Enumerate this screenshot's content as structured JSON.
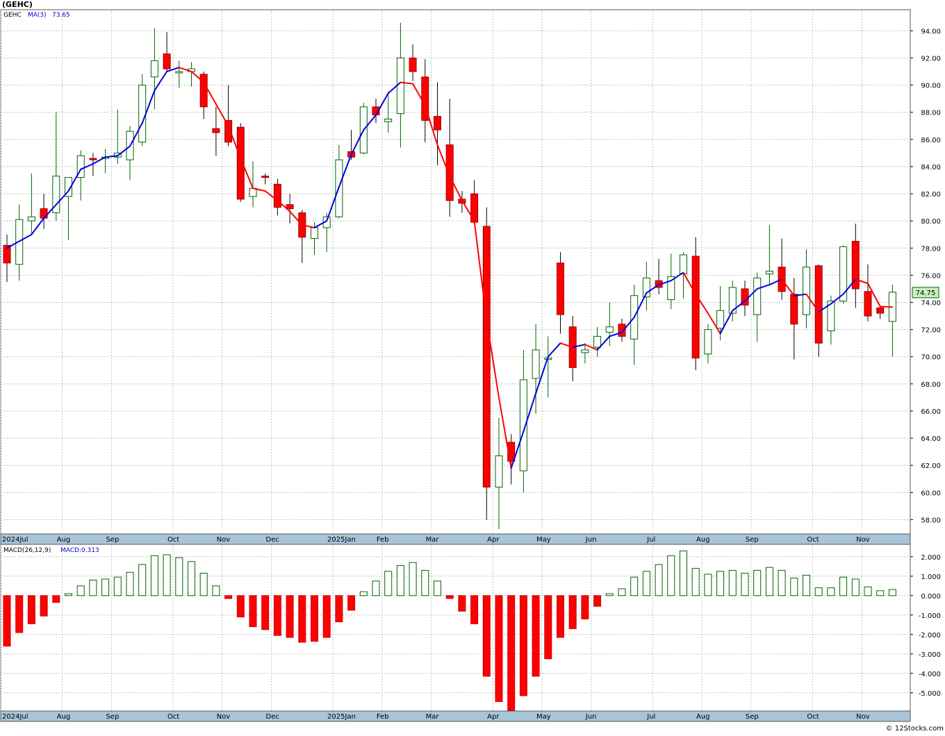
{
  "ticker_header": "(GEHC)",
  "price_panel": {
    "legend_symbol": "GEHC",
    "legend_ma_label": "MA(3)",
    "legend_ma_value": "73.65",
    "last_price_label": "74.75"
  },
  "macd_panel": {
    "legend_label": "MACD(26,12,9)",
    "legend_value": "MACD:0.313"
  },
  "watermark": "© 12Stocks.com",
  "colors": {
    "up_body": "#ffffff",
    "up_outline": "#006400",
    "down_body": "#ff0000",
    "down_outline": "#990000",
    "ma_rising": "#0000dd",
    "ma_falling": "#ff0000",
    "macd_pos_outline": "#006400",
    "macd_neg_fill": "#ff0000",
    "grid": "#c0c0c0",
    "axis_strip": "#a8c4d8",
    "price_tag_bg": "#c8f0c0"
  },
  "chart_data": [
    {
      "type": "candlestick",
      "title": "(GEHC)",
      "interval": "weekly",
      "ylim": [
        57,
        95.5
      ],
      "yticks": [
        58,
        60,
        62,
        64,
        66,
        68,
        70,
        72,
        74,
        76,
        78,
        80,
        82,
        84,
        86,
        88,
        90,
        92,
        94
      ],
      "x_tick_labels": [
        "2024Jul",
        "Aug",
        "Sep",
        "Oct",
        "Nov",
        "Dec",
        "2025Jan",
        "Feb",
        "Mar",
        "Apr",
        "May",
        "Jun",
        "Jul",
        "Aug",
        "Sep",
        "Oct",
        "Nov"
      ],
      "x_tick_index": [
        0,
        5,
        9,
        14,
        18,
        22,
        27,
        31,
        35,
        40,
        44,
        48,
        53,
        57,
        61,
        66,
        70
      ],
      "grid": true,
      "candles": [
        {
          "o": 78.2,
          "h": 79.0,
          "l": 75.5,
          "c": 76.9
        },
        {
          "o": 76.8,
          "h": 81.2,
          "l": 75.6,
          "c": 80.1
        },
        {
          "o": 80.0,
          "h": 83.5,
          "l": 79.0,
          "c": 80.3
        },
        {
          "o": 80.9,
          "h": 82.0,
          "l": 79.4,
          "c": 80.2
        },
        {
          "o": 80.6,
          "h": 88.0,
          "l": 80.0,
          "c": 83.3
        },
        {
          "o": 81.8,
          "h": 83.2,
          "l": 78.6,
          "c": 83.2
        },
        {
          "o": 83.2,
          "h": 85.2,
          "l": 81.5,
          "c": 84.8
        },
        {
          "o": 84.6,
          "h": 85.0,
          "l": 83.3,
          "c": 84.5
        },
        {
          "o": 84.6,
          "h": 85.3,
          "l": 83.5,
          "c": 84.7
        },
        {
          "o": 84.7,
          "h": 88.2,
          "l": 84.2,
          "c": 85.0
        },
        {
          "o": 84.5,
          "h": 87.0,
          "l": 83.0,
          "c": 86.6
        },
        {
          "o": 85.8,
          "h": 90.8,
          "l": 85.5,
          "c": 90.0
        },
        {
          "o": 90.6,
          "h": 94.2,
          "l": 88.2,
          "c": 91.8
        },
        {
          "o": 92.3,
          "h": 93.9,
          "l": 91.0,
          "c": 91.2
        },
        {
          "o": 90.9,
          "h": 91.8,
          "l": 89.8,
          "c": 91.0
        },
        {
          "o": 91.0,
          "h": 91.7,
          "l": 89.9,
          "c": 91.2
        },
        {
          "o": 90.8,
          "h": 91.0,
          "l": 87.5,
          "c": 88.4
        },
        {
          "o": 86.8,
          "h": 88.4,
          "l": 84.8,
          "c": 86.5
        },
        {
          "o": 87.4,
          "h": 90.0,
          "l": 85.5,
          "c": 85.8
        },
        {
          "o": 86.9,
          "h": 87.2,
          "l": 81.4,
          "c": 81.6
        },
        {
          "o": 81.8,
          "h": 84.4,
          "l": 81.0,
          "c": 82.4
        },
        {
          "o": 83.3,
          "h": 83.5,
          "l": 82.7,
          "c": 83.2
        },
        {
          "o": 82.7,
          "h": 83.1,
          "l": 80.4,
          "c": 81.0
        },
        {
          "o": 81.2,
          "h": 82.0,
          "l": 79.8,
          "c": 80.9
        },
        {
          "o": 80.6,
          "h": 80.8,
          "l": 76.9,
          "c": 78.8
        },
        {
          "o": 78.7,
          "h": 79.9,
          "l": 77.5,
          "c": 79.5
        },
        {
          "o": 79.5,
          "h": 80.6,
          "l": 77.7,
          "c": 80.3
        },
        {
          "o": 80.3,
          "h": 85.6,
          "l": 80.2,
          "c": 84.5
        },
        {
          "o": 85.1,
          "h": 86.7,
          "l": 84.5,
          "c": 84.7
        },
        {
          "o": 85.0,
          "h": 88.7,
          "l": 84.9,
          "c": 88.4
        },
        {
          "o": 88.4,
          "h": 89.0,
          "l": 87.2,
          "c": 87.8
        },
        {
          "o": 87.3,
          "h": 89.5,
          "l": 86.5,
          "c": 87.5
        },
        {
          "o": 87.9,
          "h": 94.6,
          "l": 85.4,
          "c": 92.0
        },
        {
          "o": 92.0,
          "h": 93.0,
          "l": 90.3,
          "c": 91.0
        },
        {
          "o": 90.6,
          "h": 91.9,
          "l": 85.8,
          "c": 87.4
        },
        {
          "o": 87.7,
          "h": 90.2,
          "l": 84.1,
          "c": 86.7
        },
        {
          "o": 85.6,
          "h": 89.0,
          "l": 80.3,
          "c": 81.5
        },
        {
          "o": 81.6,
          "h": 82.2,
          "l": 80.6,
          "c": 81.3
        },
        {
          "o": 82.0,
          "h": 83.0,
          "l": 79.8,
          "c": 79.9
        },
        {
          "o": 79.6,
          "h": 81.0,
          "l": 58.0,
          "c": 60.4
        },
        {
          "o": 60.4,
          "h": 65.5,
          "l": 57.3,
          "c": 62.7
        },
        {
          "o": 63.7,
          "h": 64.3,
          "l": 60.6,
          "c": 62.3
        },
        {
          "o": 61.6,
          "h": 70.5,
          "l": 60.0,
          "c": 68.3
        },
        {
          "o": 68.4,
          "h": 72.4,
          "l": 65.8,
          "c": 70.5
        },
        {
          "o": 69.8,
          "h": 71.5,
          "l": 67.0,
          "c": 69.9
        },
        {
          "o": 76.9,
          "h": 77.7,
          "l": 71.7,
          "c": 73.1
        },
        {
          "o": 72.2,
          "h": 73.0,
          "l": 68.2,
          "c": 69.2
        },
        {
          "o": 70.3,
          "h": 71.0,
          "l": 69.5,
          "c": 70.5
        },
        {
          "o": 70.7,
          "h": 72.2,
          "l": 70.0,
          "c": 71.5
        },
        {
          "o": 71.8,
          "h": 74.0,
          "l": 70.8,
          "c": 72.2
        },
        {
          "o": 72.4,
          "h": 72.8,
          "l": 71.1,
          "c": 71.5
        },
        {
          "o": 71.3,
          "h": 75.3,
          "l": 69.4,
          "c": 74.5
        },
        {
          "o": 74.4,
          "h": 77.0,
          "l": 73.4,
          "c": 75.8
        },
        {
          "o": 75.6,
          "h": 77.2,
          "l": 74.6,
          "c": 75.1
        },
        {
          "o": 74.2,
          "h": 77.6,
          "l": 73.5,
          "c": 75.9
        },
        {
          "o": 76.1,
          "h": 77.7,
          "l": 74.3,
          "c": 77.5
        },
        {
          "o": 77.4,
          "h": 78.8,
          "l": 69.0,
          "c": 69.9
        },
        {
          "o": 70.2,
          "h": 72.4,
          "l": 69.5,
          "c": 72.0
        },
        {
          "o": 72.1,
          "h": 75.2,
          "l": 71.2,
          "c": 73.4
        },
        {
          "o": 73.2,
          "h": 75.6,
          "l": 72.6,
          "c": 75.1
        },
        {
          "o": 75.0,
          "h": 75.6,
          "l": 73.0,
          "c": 73.8
        },
        {
          "o": 73.1,
          "h": 76.2,
          "l": 71.1,
          "c": 75.8
        },
        {
          "o": 76.1,
          "h": 79.7,
          "l": 75.3,
          "c": 76.3
        },
        {
          "o": 76.6,
          "h": 78.7,
          "l": 74.2,
          "c": 74.8
        },
        {
          "o": 74.6,
          "h": 75.8,
          "l": 69.8,
          "c": 72.4
        },
        {
          "o": 73.1,
          "h": 77.9,
          "l": 72.1,
          "c": 76.6
        },
        {
          "o": 76.7,
          "h": 76.8,
          "l": 70.0,
          "c": 71.0
        },
        {
          "o": 71.9,
          "h": 74.5,
          "l": 70.9,
          "c": 74.1
        },
        {
          "o": 74.1,
          "h": 78.2,
          "l": 73.9,
          "c": 78.1
        },
        {
          "o": 78.5,
          "h": 79.8,
          "l": 73.6,
          "c": 75.0
        },
        {
          "o": 74.8,
          "h": 76.8,
          "l": 72.6,
          "c": 73.0
        },
        {
          "o": 73.6,
          "h": 73.7,
          "l": 72.8,
          "c": 73.2
        },
        {
          "o": 72.6,
          "h": 75.3,
          "l": 70.0,
          "c": 74.75
        }
      ],
      "ma3": [
        78.0,
        78.5,
        79.0,
        80.2,
        81.2,
        82.2,
        83.8,
        84.2,
        84.7,
        84.8,
        85.5,
        87.2,
        89.6,
        91.0,
        91.3,
        91.0,
        90.2,
        88.6,
        87.0,
        84.6,
        82.4,
        82.2,
        81.5,
        80.7,
        79.7,
        79.5,
        80.0,
        82.5,
        84.9,
        86.7,
        87.8,
        89.4,
        90.2,
        90.1,
        88.5,
        85.6,
        83.3,
        81.5,
        80.0,
        72.7,
        67.0,
        61.8,
        64.5,
        67.3,
        70.0,
        71.0,
        70.7,
        70.9,
        70.5,
        71.5,
        71.8,
        72.9,
        74.7,
        75.3,
        75.6,
        76.2,
        74.6,
        73.2,
        71.7,
        73.4,
        74.1,
        75.0,
        75.3,
        75.7,
        74.5,
        74.6,
        73.3,
        73.9,
        74.6,
        75.7,
        75.4,
        73.7,
        73.65
      ]
    },
    {
      "type": "bar",
      "title": "MACD(26,12,9)",
      "ylim": [
        -5.9,
        2.6
      ],
      "yticks": [
        2,
        1,
        0,
        -1,
        -2,
        -3,
        -4,
        -5
      ],
      "ytick_labels": [
        "2.000",
        "1.000",
        "0.000",
        "-1.000",
        "-2.000",
        "-3.000",
        "-4.000",
        "-5.000"
      ],
      "grid": true,
      "values": [
        -2.6,
        -1.9,
        -1.45,
        -1.05,
        -0.35,
        0.1,
        0.5,
        0.8,
        0.85,
        0.95,
        1.2,
        1.6,
        2.05,
        2.1,
        1.95,
        1.75,
        1.15,
        0.5,
        -0.15,
        -1.1,
        -1.6,
        -1.75,
        -2.05,
        -2.15,
        -2.4,
        -2.35,
        -2.15,
        -1.35,
        -0.75,
        0.2,
        0.75,
        1.25,
        1.55,
        1.7,
        1.3,
        0.75,
        -0.15,
        -0.8,
        -1.45,
        -4.15,
        -5.45,
        -5.9,
        -5.15,
        -4.15,
        -3.25,
        -2.15,
        -1.7,
        -1.2,
        -0.55,
        0.1,
        0.35,
        0.95,
        1.25,
        1.6,
        2.05,
        2.3,
        1.4,
        1.1,
        1.25,
        1.3,
        1.15,
        1.3,
        1.45,
        1.3,
        0.9,
        1.05,
        0.4,
        0.4,
        0.95,
        0.85,
        0.45,
        0.25,
        0.313
      ]
    }
  ]
}
